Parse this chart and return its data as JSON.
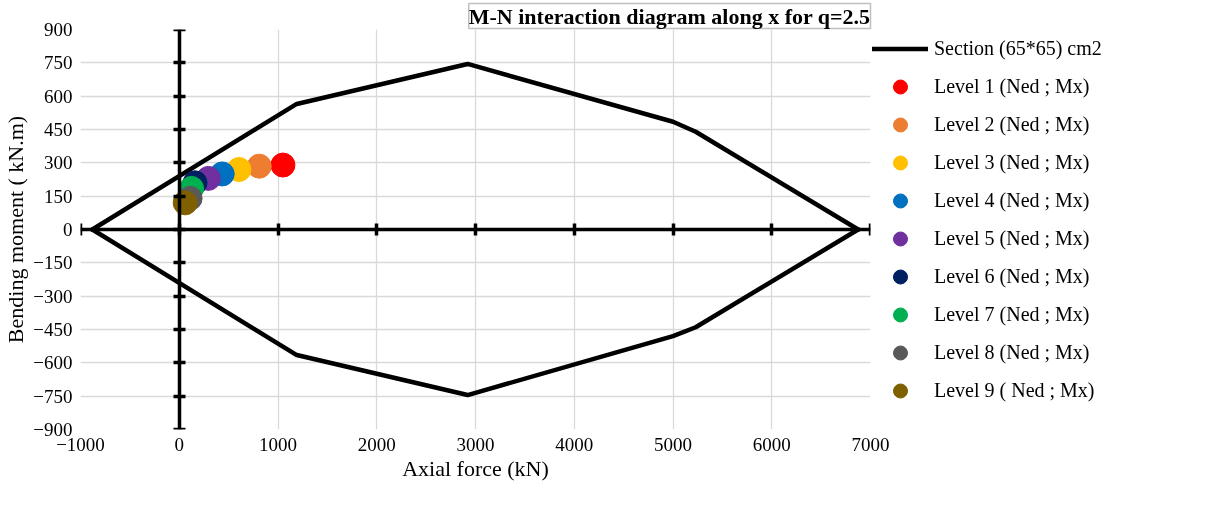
{
  "chart_data": {
    "type": "scatter",
    "title": "M-N interaction diagram along x for q=2.5",
    "xlabel": "Axial force (kN)",
    "ylabel": "Bending moment ( kN.m)",
    "xlim": [
      -1000,
      7000
    ],
    "xticks": [
      -1000,
      0,
      1000,
      2000,
      3000,
      4000,
      5000,
      6000,
      7000
    ],
    "ylim": [
      -900,
      900
    ],
    "yticks": [
      -900,
      -750,
      -600,
      -450,
      -300,
      -150,
      0,
      150,
      300,
      450,
      600,
      750,
      900
    ],
    "grid": true,
    "legend": "right",
    "marker": "circle",
    "series": [
      {
        "name": "Section (65*65) cm2",
        "type": "line",
        "marker": "none",
        "line_style": "solid",
        "color": "#000000",
        "x": [
          -880,
          1190,
          2920,
          5000,
          5230,
          6875
        ],
        "values": [
          0,
          565,
          745,
          485,
          440,
          0
        ]
      },
      {
        "type": "line",
        "marker": "none",
        "line_style": "solid",
        "color": "#000000",
        "x": [
          -880,
          1190,
          2920,
          5000,
          5230,
          6875
        ],
        "values": [
          0,
          -565,
          -745,
          -480,
          -440,
          0
        ]
      },
      {
        "name": "Level 1 (Ned ; Mx)",
        "color": "#ff0000",
        "x": [
          1050
        ],
        "values": [
          290
        ]
      },
      {
        "name": "Level 2 (Ned ; Mx)",
        "color": "#ed7d31",
        "x": [
          810
        ],
        "values": [
          285
        ]
      },
      {
        "name": "Level 3 (Ned ; Mx)",
        "color": "#ffc000",
        "x": [
          605
        ],
        "values": [
          270
        ]
      },
      {
        "name": "Level 4 (Ned ; Mx)",
        "color": "#0070c0",
        "x": [
          435
        ],
        "values": [
          250
        ]
      },
      {
        "name": "Level 5 (Ned ; Mx)",
        "color": "#7030a0",
        "x": [
          295
        ],
        "values": [
          230
        ]
      },
      {
        "name": "Level 6 (Ned ; Mx)",
        "color": "#002060",
        "x": [
          160
        ],
        "values": [
          210
        ]
      },
      {
        "name": "Level 7 (Ned ; Mx)",
        "color": "#00b050",
        "x": [
          125
        ],
        "values": [
          185
        ]
      },
      {
        "name": "Level 8 (Ned ; Mx)",
        "color": "#595959",
        "x": [
          110
        ],
        "values": [
          140
        ]
      },
      {
        "name": "Level 9 ( Ned ; Mx)",
        "color": "#7f6000",
        "x": [
          60
        ],
        "values": [
          120
        ]
      }
    ]
  }
}
